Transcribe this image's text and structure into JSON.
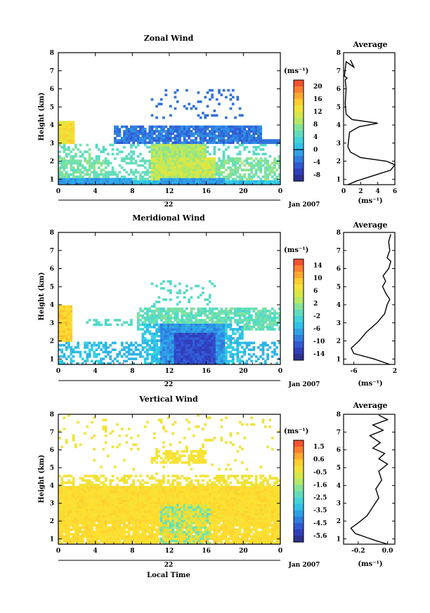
{
  "chart_data": [
    {
      "type": "heatmap",
      "title": "Zonal Wind",
      "ylabel": "Height (km)",
      "unit_label": "(ms⁻¹)",
      "x_ticks": [
        "0",
        "4",
        "8",
        "12",
        "16",
        "20",
        "0"
      ],
      "y_ticks": [
        "1",
        "2",
        "3",
        "4",
        "5",
        "6",
        "7",
        "8"
      ],
      "xlim": [
        0,
        24
      ],
      "ylim": [
        0.7,
        8.0
      ],
      "day_label": "22",
      "month_label": "Jan 2007",
      "colorbar": {
        "ticks": [
          "20",
          "16",
          "12",
          "8",
          "4",
          "0",
          "-4",
          "-8"
        ],
        "range": [
          -10,
          22
        ],
        "contour_at": 0
      },
      "average_profile": {
        "title": "Average",
        "xlabel": "(ms⁻¹)",
        "x_ticks": [
          "0",
          "2",
          "4",
          "6"
        ],
        "xlim": [
          0,
          6
        ],
        "points": [
          [
            0.5,
            0.7
          ],
          [
            1.5,
            0.9
          ],
          [
            3.5,
            1.2
          ],
          [
            5.5,
            1.5
          ],
          [
            6,
            1.8
          ],
          [
            5,
            2.0
          ],
          [
            2,
            2.2
          ],
          [
            0.8,
            2.5
          ],
          [
            0.5,
            2.8
          ],
          [
            0.6,
            3.2
          ],
          [
            0.7,
            3.6
          ],
          [
            1.8,
            3.9
          ],
          [
            4,
            4.1
          ],
          [
            1,
            4.3
          ],
          [
            0.3,
            4.6
          ],
          [
            0.2,
            5.2
          ],
          [
            0.3,
            6.0
          ],
          [
            0.2,
            6.5
          ],
          [
            0.4,
            6.6
          ],
          [
            0.1,
            6.7
          ],
          [
            0.3,
            7.5
          ],
          [
            1.2,
            7.2
          ],
          [
            0.8,
            7.6
          ]
        ]
      }
    },
    {
      "type": "heatmap",
      "title": "Meridional Wind",
      "ylabel": "Height (km)",
      "unit_label": "(ms⁻¹)",
      "x_ticks": [
        "0",
        "4",
        "8",
        "12",
        "16",
        "20",
        "0"
      ],
      "y_ticks": [
        "1",
        "2",
        "3",
        "4",
        "5",
        "6",
        "7",
        "8"
      ],
      "xlim": [
        0,
        24
      ],
      "ylim": [
        0.7,
        8.0
      ],
      "day_label": "22",
      "month_label": "Jan 2007",
      "colorbar": {
        "ticks": [
          "14",
          "10",
          "6",
          "2",
          "-2",
          "-6",
          "-10",
          "-14"
        ],
        "range": [
          -16,
          16
        ],
        "contour_at": 0
      },
      "average_profile": {
        "title": "Average",
        "xlabel": "(ms⁻¹)",
        "x_ticks": [
          "-6",
          "2"
        ],
        "xlim": [
          -8,
          2
        ],
        "points": [
          [
            1,
            0.7
          ],
          [
            -2,
            1.0
          ],
          [
            -6,
            1.3
          ],
          [
            -6.5,
            1.6
          ],
          [
            -5,
            2.0
          ],
          [
            -3.5,
            2.5
          ],
          [
            -1.5,
            3.0
          ],
          [
            0,
            3.5
          ],
          [
            0.5,
            4.0
          ],
          [
            1,
            4.3
          ],
          [
            0.3,
            4.6
          ],
          [
            -0.4,
            5.0
          ],
          [
            0.2,
            5.3
          ],
          [
            -0.3,
            5.6
          ],
          [
            0.8,
            6.0
          ],
          [
            1.2,
            6.4
          ],
          [
            0.5,
            6.6
          ],
          [
            1,
            7.0
          ],
          [
            0.8,
            7.5
          ],
          [
            1.2,
            7.9
          ]
        ]
      }
    },
    {
      "type": "heatmap",
      "title": "Vertical Wind",
      "xlabel": "Local Time",
      "ylabel": "Height (km)",
      "unit_label": "(ms⁻¹)",
      "x_ticks": [
        "0",
        "4",
        "8",
        "12",
        "16",
        "20",
        "0"
      ],
      "y_ticks": [
        "1",
        "2",
        "3",
        "4",
        "5",
        "6",
        "7",
        "8"
      ],
      "xlim": [
        0,
        24
      ],
      "ylim": [
        0.7,
        8.0
      ],
      "day_label": "22",
      "month_label": "Jan 2007",
      "colorbar": {
        "ticks": [
          "1.5",
          "0.6",
          "-0.5",
          "-1.6",
          "-2.5",
          "-3.5",
          "-4.5",
          "-5.6"
        ],
        "range": [
          -6,
          2
        ],
        "contour_at": null
      },
      "average_profile": {
        "title": "Average",
        "xlabel": "(ms⁻¹)",
        "x_ticks": [
          "-0.2",
          "0.0"
        ],
        "xlim": [
          -0.3,
          0.05
        ],
        "points": [
          [
            0.0,
            0.7
          ],
          [
            -0.08,
            0.9
          ],
          [
            -0.15,
            1.1
          ],
          [
            -0.22,
            1.3
          ],
          [
            -0.25,
            1.6
          ],
          [
            -0.2,
            1.9
          ],
          [
            -0.14,
            2.3
          ],
          [
            -0.1,
            2.8
          ],
          [
            -0.06,
            3.3
          ],
          [
            -0.08,
            3.8
          ],
          [
            -0.04,
            4.3
          ],
          [
            -0.06,
            4.8
          ],
          [
            0.0,
            5.2
          ],
          [
            -0.06,
            5.5
          ],
          [
            -0.02,
            5.8
          ],
          [
            -0.1,
            6.1
          ],
          [
            -0.05,
            6.4
          ],
          [
            -0.12,
            6.8
          ],
          [
            -0.03,
            7.1
          ],
          [
            -0.1,
            7.4
          ],
          [
            0.0,
            7.7
          ],
          [
            -0.06,
            7.95
          ]
        ]
      }
    }
  ]
}
